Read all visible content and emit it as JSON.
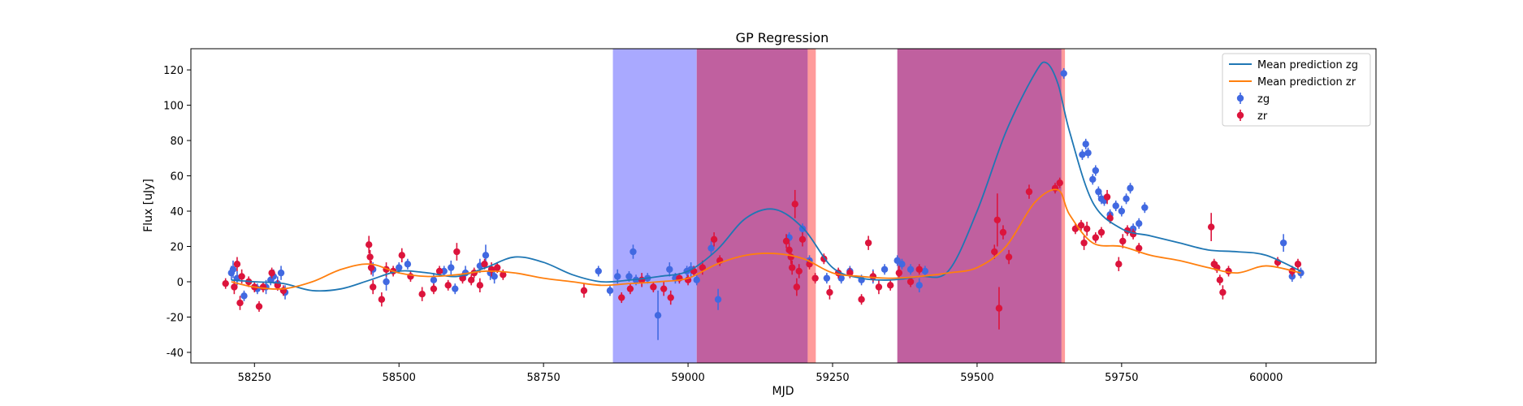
{
  "chart_data": {
    "type": "scatter",
    "title": "GP Regression",
    "xlabel": "MJD",
    "ylabel": "Flux [uJy]",
    "xlim": [
      58140,
      60190
    ],
    "ylim": [
      -46,
      132
    ],
    "x_ticks": [
      58250,
      58500,
      58750,
      59000,
      59250,
      59500,
      59750,
      60000
    ],
    "y_ticks": [
      -40,
      -20,
      0,
      20,
      40,
      60,
      80,
      100,
      120
    ],
    "legend_position": "top-right",
    "colors": {
      "zg_points": "#4169e1",
      "zr_points": "#dc143c",
      "zg_line": "#1f77b4",
      "zr_line": "#ff7f0e",
      "blue_band": "#7b7bff",
      "red_band": "#ff6666",
      "overlap_band": "#c0609f"
    },
    "shaded_regions": [
      {
        "color": "blue",
        "x0": 58870,
        "x1": 59015
      },
      {
        "color": "purple",
        "x0": 59015,
        "x1": 59207
      },
      {
        "color": "red",
        "x0": 59207,
        "x1": 59221
      },
      {
        "color": "purple",
        "x0": 59362,
        "x1": 59646
      },
      {
        "color": "red",
        "x0": 59646,
        "x1": 59652
      }
    ],
    "series": [
      {
        "name": "Mean prediction zg",
        "kind": "line",
        "x": [
          58210,
          58250,
          58300,
          58350,
          58400,
          58450,
          58500,
          58550,
          58600,
          58650,
          58700,
          58750,
          58800,
          58850,
          58900,
          58950,
          59000,
          59050,
          59100,
          59150,
          59200,
          59250,
          59300,
          59350,
          59400,
          59450,
          59500,
          59550,
          59600,
          59620,
          59640,
          59660,
          59700,
          59750,
          59800,
          59850,
          59900,
          59950,
          60000,
          60060
        ],
        "y": [
          1,
          0,
          -1,
          -5,
          -4,
          1,
          6,
          5,
          3,
          8,
          14,
          11,
          4,
          0,
          1,
          3,
          6,
          18,
          36,
          41,
          30,
          8,
          2,
          1,
          3,
          6,
          40,
          85,
          118,
          124,
          112,
          85,
          45,
          30,
          26,
          22,
          18,
          17,
          15,
          6
        ]
      },
      {
        "name": "Mean prediction zr",
        "kind": "line",
        "x": [
          58210,
          58250,
          58300,
          58350,
          58400,
          58450,
          58500,
          58550,
          58600,
          58650,
          58700,
          58750,
          58800,
          58850,
          58900,
          58950,
          59000,
          59050,
          59100,
          59150,
          59200,
          59250,
          59300,
          59350,
          59400,
          59450,
          59500,
          59550,
          59600,
          59640,
          59660,
          59700,
          59750,
          59800,
          59850,
          59900,
          59950,
          60000,
          60060
        ],
        "y": [
          0,
          -3,
          -4,
          0,
          7,
          10,
          5,
          3,
          4,
          6,
          5,
          2,
          0,
          -2,
          -1,
          0,
          2,
          10,
          15,
          16,
          13,
          5,
          3,
          2,
          3,
          5,
          8,
          20,
          45,
          52,
          38,
          22,
          20,
          15,
          12,
          8,
          5,
          9,
          5
        ]
      },
      {
        "name": "zg",
        "kind": "points",
        "points": [
          [
            58210,
            5,
            4
          ],
          [
            58213,
            7,
            5
          ],
          [
            58220,
            2,
            4
          ],
          [
            58232,
            -8,
            3
          ],
          [
            58255,
            -4,
            3
          ],
          [
            58270,
            -3,
            4
          ],
          [
            58278,
            1,
            3
          ],
          [
            58283,
            3,
            4
          ],
          [
            58290,
            -1,
            4
          ],
          [
            58296,
            5,
            4
          ],
          [
            58303,
            -6,
            4
          ],
          [
            58455,
            7,
            4
          ],
          [
            58478,
            0,
            5
          ],
          [
            58500,
            8,
            3
          ],
          [
            58515,
            10,
            3
          ],
          [
            58560,
            1,
            4
          ],
          [
            58578,
            6,
            3
          ],
          [
            58590,
            8,
            4
          ],
          [
            58597,
            -4,
            3
          ],
          [
            58615,
            5,
            4
          ],
          [
            58640,
            9,
            4
          ],
          [
            58650,
            15,
            6
          ],
          [
            58658,
            5,
            4
          ],
          [
            58665,
            3,
            4
          ],
          [
            58845,
            6,
            3
          ],
          [
            58865,
            -5,
            3
          ],
          [
            58878,
            3,
            4
          ],
          [
            58898,
            3,
            3
          ],
          [
            58905,
            17,
            4
          ],
          [
            58910,
            1,
            3
          ],
          [
            58930,
            2,
            3
          ],
          [
            58948,
            -19,
            14
          ],
          [
            58968,
            7,
            4
          ],
          [
            58978,
            2,
            3
          ],
          [
            58998,
            6,
            3
          ],
          [
            59005,
            7,
            4
          ],
          [
            59015,
            1,
            3
          ],
          [
            59040,
            19,
            4
          ],
          [
            59052,
            -10,
            6
          ],
          [
            59175,
            25,
            3
          ],
          [
            59198,
            30,
            3
          ],
          [
            59210,
            12,
            3
          ],
          [
            59240,
            2,
            3
          ],
          [
            59265,
            2,
            3
          ],
          [
            59280,
            6,
            3
          ],
          [
            59300,
            1,
            3
          ],
          [
            59320,
            3,
            4
          ],
          [
            59340,
            7,
            3
          ],
          [
            59362,
            12,
            3
          ],
          [
            59370,
            10,
            3
          ],
          [
            59385,
            7,
            3
          ],
          [
            59400,
            -2,
            4
          ],
          [
            59410,
            6,
            3
          ],
          [
            59650,
            118,
            3
          ],
          [
            59682,
            72,
            3
          ],
          [
            59688,
            78,
            3
          ],
          [
            59692,
            73,
            3
          ],
          [
            59700,
            58,
            3
          ],
          [
            59705,
            63,
            3
          ],
          [
            59710,
            51,
            3
          ],
          [
            59715,
            47,
            3
          ],
          [
            59720,
            46,
            3
          ],
          [
            59730,
            38,
            3
          ],
          [
            59740,
            43,
            3
          ],
          [
            59750,
            40,
            3
          ],
          [
            59758,
            47,
            3
          ],
          [
            59765,
            53,
            3
          ],
          [
            59770,
            30,
            3
          ],
          [
            59780,
            33,
            3
          ],
          [
            59790,
            42,
            3
          ],
          [
            60030,
            22,
            5
          ],
          [
            60045,
            3,
            3
          ],
          [
            60060,
            5,
            3
          ]
        ]
      },
      {
        "name": "zr",
        "kind": "points",
        "points": [
          [
            58200,
            -1,
            3
          ],
          [
            58215,
            -3,
            4
          ],
          [
            58220,
            10,
            4
          ],
          [
            58225,
            -12,
            4
          ],
          [
            58228,
            3,
            4
          ],
          [
            58240,
            0,
            3
          ],
          [
            58250,
            -3,
            3
          ],
          [
            58258,
            -14,
            3
          ],
          [
            58265,
            -3,
            3
          ],
          [
            58280,
            5,
            3
          ],
          [
            58290,
            -2,
            3
          ],
          [
            58300,
            -5,
            3
          ],
          [
            58448,
            21,
            5
          ],
          [
            58450,
            14,
            4
          ],
          [
            58452,
            8,
            4
          ],
          [
            58455,
            -3,
            4
          ],
          [
            58470,
            -10,
            4
          ],
          [
            58478,
            7,
            4
          ],
          [
            58490,
            6,
            3
          ],
          [
            58505,
            15,
            4
          ],
          [
            58520,
            3,
            3
          ],
          [
            58540,
            -7,
            4
          ],
          [
            58560,
            -4,
            3
          ],
          [
            58570,
            6,
            3
          ],
          [
            58585,
            -2,
            3
          ],
          [
            58600,
            17,
            5
          ],
          [
            58610,
            2,
            3
          ],
          [
            58625,
            1,
            3
          ],
          [
            58630,
            5,
            3
          ],
          [
            58640,
            -2,
            4
          ],
          [
            58648,
            10,
            3
          ],
          [
            58660,
            7,
            4
          ],
          [
            58670,
            8,
            3
          ],
          [
            58680,
            4,
            3
          ],
          [
            58820,
            -5,
            4
          ],
          [
            58885,
            -9,
            3
          ],
          [
            58900,
            -4,
            3
          ],
          [
            58920,
            1,
            4
          ],
          [
            58940,
            -3,
            3
          ],
          [
            58958,
            -4,
            4
          ],
          [
            58970,
            -9,
            4
          ],
          [
            58985,
            2,
            3
          ],
          [
            59000,
            1,
            3
          ],
          [
            59010,
            6,
            3
          ],
          [
            59025,
            8,
            4
          ],
          [
            59045,
            24,
            4
          ],
          [
            59055,
            12,
            3
          ],
          [
            59170,
            23,
            4
          ],
          [
            59175,
            18,
            4
          ],
          [
            59178,
            14,
            4
          ],
          [
            59180,
            8,
            4
          ],
          [
            59185,
            44,
            8
          ],
          [
            59188,
            -3,
            5
          ],
          [
            59192,
            6,
            4
          ],
          [
            59198,
            24,
            4
          ],
          [
            59210,
            10,
            3
          ],
          [
            59220,
            2,
            3
          ],
          [
            59235,
            13,
            3
          ],
          [
            59245,
            -6,
            4
          ],
          [
            59260,
            5,
            3
          ],
          [
            59280,
            5,
            3
          ],
          [
            59300,
            -10,
            3
          ],
          [
            59312,
            22,
            4
          ],
          [
            59320,
            3,
            3
          ],
          [
            59330,
            -3,
            4
          ],
          [
            59350,
            -2,
            3
          ],
          [
            59365,
            5,
            4
          ],
          [
            59385,
            0,
            3
          ],
          [
            59400,
            7,
            3
          ],
          [
            59530,
            17,
            4
          ],
          [
            59535,
            35,
            15
          ],
          [
            59538,
            -15,
            12
          ],
          [
            59545,
            28,
            4
          ],
          [
            59555,
            14,
            4
          ],
          [
            59590,
            51,
            4
          ],
          [
            59635,
            53,
            3
          ],
          [
            59643,
            56,
            3
          ],
          [
            59670,
            30,
            3
          ],
          [
            59680,
            32,
            3
          ],
          [
            59685,
            22,
            4
          ],
          [
            59690,
            30,
            4
          ],
          [
            59705,
            25,
            3
          ],
          [
            59715,
            28,
            3
          ],
          [
            59725,
            48,
            4
          ],
          [
            59730,
            36,
            3
          ],
          [
            59745,
            10,
            4
          ],
          [
            59752,
            23,
            4
          ],
          [
            59760,
            29,
            3
          ],
          [
            59770,
            27,
            3
          ],
          [
            59780,
            19,
            3
          ],
          [
            59905,
            31,
            8
          ],
          [
            59910,
            10,
            3
          ],
          [
            59915,
            8,
            3
          ],
          [
            59920,
            1,
            3
          ],
          [
            59925,
            -6,
            4
          ],
          [
            59935,
            6,
            3
          ],
          [
            60020,
            11,
            3
          ],
          [
            60045,
            6,
            3
          ],
          [
            60055,
            10,
            3
          ]
        ]
      }
    ]
  }
}
